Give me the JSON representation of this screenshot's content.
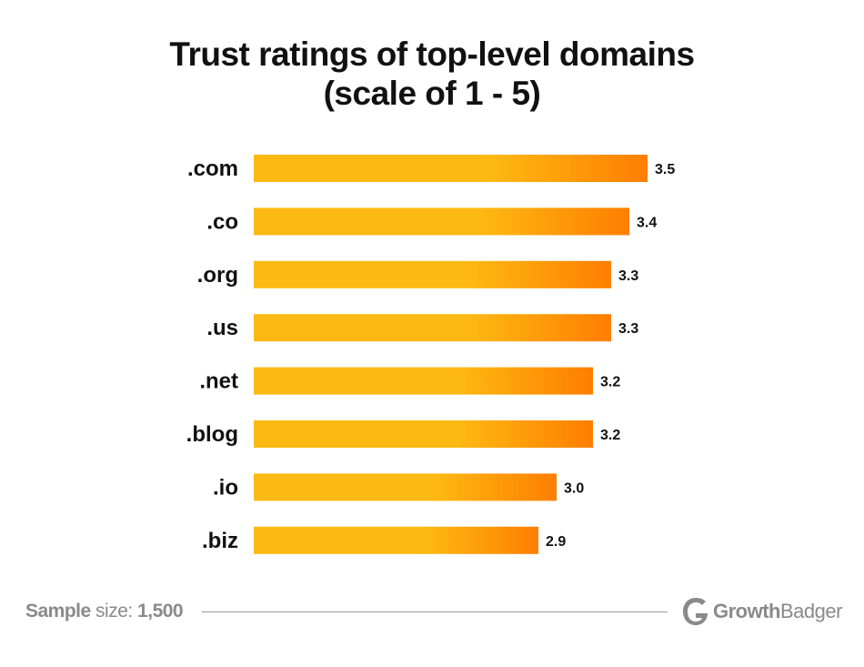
{
  "title_line1": "Trust ratings of top-level domains",
  "title_line2": "(scale of 1 - 5)",
  "chart_data": {
    "type": "bar",
    "orientation": "horizontal",
    "title": "Trust ratings of top-level domains (scale of 1 - 5)",
    "categories": [
      ".com",
      ".co",
      ".org",
      ".us",
      ".net",
      ".blog",
      ".io",
      ".biz"
    ],
    "values": [
      3.5,
      3.4,
      3.3,
      3.3,
      3.2,
      3.2,
      3.0,
      2.9
    ],
    "labels": [
      "3.5",
      "3.4",
      "3.3",
      "3.3",
      "3.2",
      "3.2",
      "3.0",
      "2.9"
    ],
    "xlabel": "",
    "ylabel": "",
    "grid": false,
    "colors": {
      "bar_start": "#FDB913",
      "bar_end": "#FF7E00"
    }
  },
  "footer": {
    "sample_label": "Sample",
    "size_label": " size: ",
    "sample_value": "1,500",
    "logo_text_bold": "Growth",
    "logo_text_regular": "Badger"
  }
}
